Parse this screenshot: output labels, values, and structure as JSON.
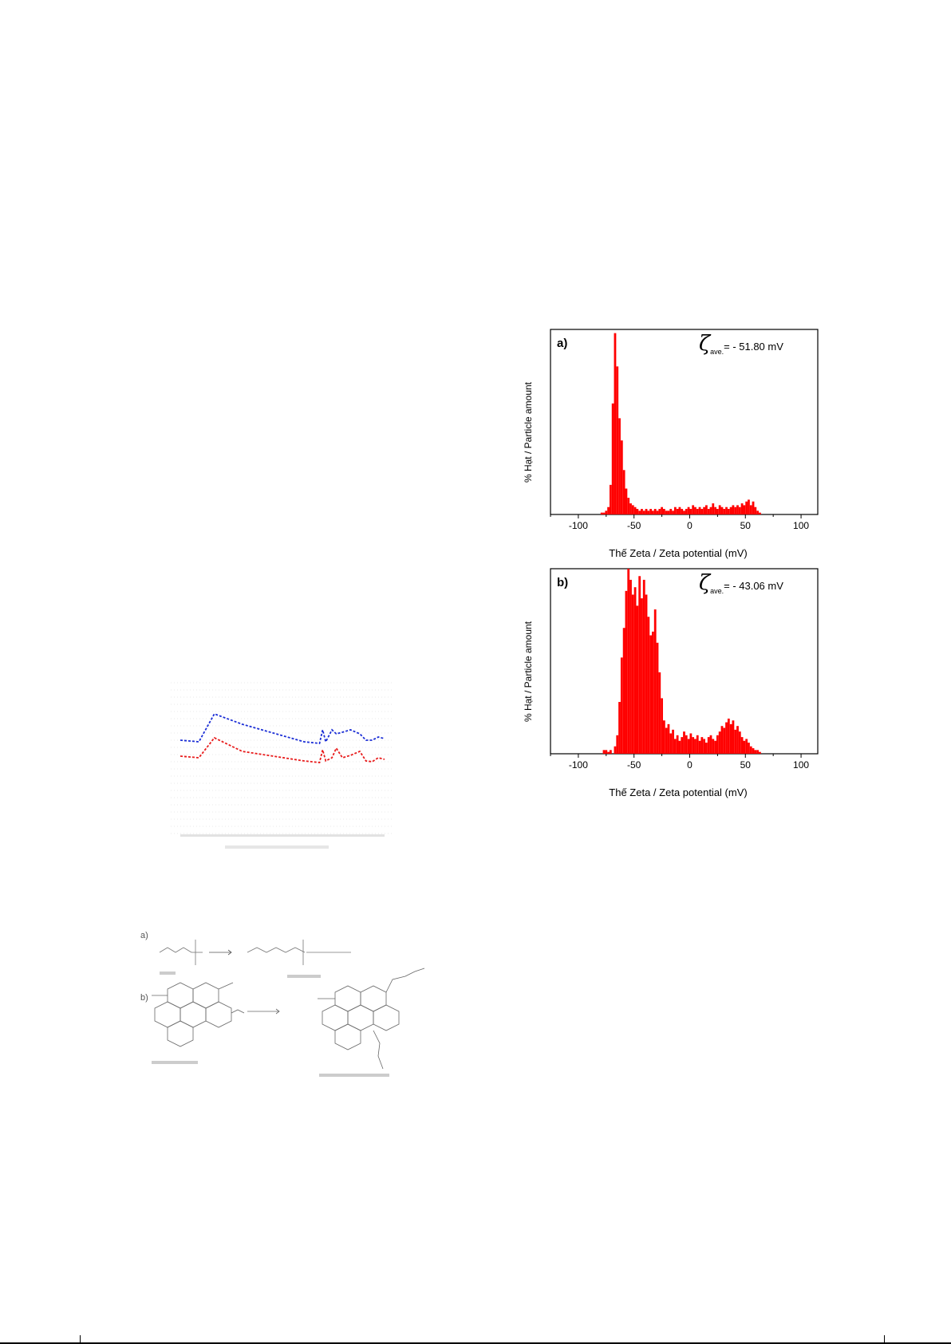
{
  "page": {
    "background": "#ffffff",
    "footer_rule": "#000000"
  },
  "ftir": {
    "colors": {
      "red": "#e81c1c",
      "blue": "#1c2fd6",
      "grid": "#d6d6d6"
    },
    "curves": {
      "red": [
        [
          4000,
          0.72
        ],
        [
          3700,
          0.7
        ],
        [
          3450,
          0.95
        ],
        [
          3000,
          0.78
        ],
        [
          2000,
          0.66
        ],
        [
          1750,
          0.64
        ],
        [
          1700,
          0.8
        ],
        [
          1650,
          0.66
        ],
        [
          1550,
          0.7
        ],
        [
          1480,
          0.82
        ],
        [
          1380,
          0.7
        ],
        [
          1250,
          0.73
        ],
        [
          1100,
          0.78
        ],
        [
          1000,
          0.66
        ],
        [
          900,
          0.65
        ],
        [
          800,
          0.7
        ],
        [
          700,
          0.68
        ]
      ],
      "blue": [
        [
          4000,
          0.92
        ],
        [
          3700,
          0.9
        ],
        [
          3450,
          1.25
        ],
        [
          3000,
          1.12
        ],
        [
          2000,
          0.9
        ],
        [
          1750,
          0.88
        ],
        [
          1700,
          1.05
        ],
        [
          1650,
          0.9
        ],
        [
          1550,
          1.05
        ],
        [
          1480,
          1.0
        ],
        [
          1380,
          1.02
        ],
        [
          1250,
          1.05
        ],
        [
          1100,
          1.0
        ],
        [
          1000,
          0.92
        ],
        [
          900,
          0.92
        ],
        [
          800,
          0.96
        ],
        [
          700,
          0.94
        ]
      ]
    }
  },
  "scheme": {
    "part_a_label": "a)",
    "part_b_label": "b)",
    "line_color": "#333333"
  },
  "chart_data": [
    {
      "type": "bar",
      "panel_label": "a)",
      "zeta_avg": "= - 51.80 mV",
      "xlabel": "Thế Zeta / Zeta potential (mV)",
      "ylabel": "% Hạt / Particle amount",
      "xlim": [
        -125,
        115
      ],
      "ylim": [
        0,
        100
      ],
      "xticks": [
        "-100",
        "-50",
        "0",
        "50",
        "100"
      ],
      "xtick_values": [
        -100,
        -50,
        0,
        50,
        100
      ],
      "bin_width": 2,
      "bar_color": "#ff0000",
      "bins": [
        {
          "x": -80,
          "y": 1
        },
        {
          "x": -78,
          "y": 1
        },
        {
          "x": -76,
          "y": 2
        },
        {
          "x": -74,
          "y": 4
        },
        {
          "x": -72,
          "y": 16
        },
        {
          "x": -70,
          "y": 60
        },
        {
          "x": -68,
          "y": 98
        },
        {
          "x": -66,
          "y": 80
        },
        {
          "x": -64,
          "y": 52
        },
        {
          "x": -62,
          "y": 40
        },
        {
          "x": -60,
          "y": 24
        },
        {
          "x": -58,
          "y": 14
        },
        {
          "x": -56,
          "y": 9
        },
        {
          "x": -54,
          "y": 6
        },
        {
          "x": -52,
          "y": 5
        },
        {
          "x": -50,
          "y": 4
        },
        {
          "x": -48,
          "y": 3
        },
        {
          "x": -46,
          "y": 2
        },
        {
          "x": -44,
          "y": 3
        },
        {
          "x": -42,
          "y": 2
        },
        {
          "x": -40,
          "y": 3
        },
        {
          "x": -38,
          "y": 2
        },
        {
          "x": -36,
          "y": 3
        },
        {
          "x": -34,
          "y": 2
        },
        {
          "x": -32,
          "y": 3
        },
        {
          "x": -30,
          "y": 2
        },
        {
          "x": -28,
          "y": 3
        },
        {
          "x": -26,
          "y": 4
        },
        {
          "x": -24,
          "y": 3
        },
        {
          "x": -22,
          "y": 2
        },
        {
          "x": -20,
          "y": 2
        },
        {
          "x": -18,
          "y": 3
        },
        {
          "x": -16,
          "y": 2
        },
        {
          "x": -14,
          "y": 4
        },
        {
          "x": -12,
          "y": 3
        },
        {
          "x": -10,
          "y": 4
        },
        {
          "x": -8,
          "y": 3
        },
        {
          "x": -6,
          "y": 2
        },
        {
          "x": -4,
          "y": 3
        },
        {
          "x": -2,
          "y": 4
        },
        {
          "x": 0,
          "y": 3
        },
        {
          "x": 2,
          "y": 5
        },
        {
          "x": 4,
          "y": 4
        },
        {
          "x": 6,
          "y": 3
        },
        {
          "x": 8,
          "y": 4
        },
        {
          "x": 10,
          "y": 3
        },
        {
          "x": 12,
          "y": 4
        },
        {
          "x": 14,
          "y": 5
        },
        {
          "x": 16,
          "y": 3
        },
        {
          "x": 18,
          "y": 4
        },
        {
          "x": 20,
          "y": 6
        },
        {
          "x": 22,
          "y": 4
        },
        {
          "x": 24,
          "y": 3
        },
        {
          "x": 26,
          "y": 5
        },
        {
          "x": 28,
          "y": 4
        },
        {
          "x": 30,
          "y": 3
        },
        {
          "x": 32,
          "y": 4
        },
        {
          "x": 34,
          "y": 3
        },
        {
          "x": 36,
          "y": 4
        },
        {
          "x": 38,
          "y": 5
        },
        {
          "x": 40,
          "y": 4
        },
        {
          "x": 42,
          "y": 5
        },
        {
          "x": 44,
          "y": 4
        },
        {
          "x": 46,
          "y": 6
        },
        {
          "x": 48,
          "y": 5
        },
        {
          "x": 50,
          "y": 7
        },
        {
          "x": 52,
          "y": 8
        },
        {
          "x": 54,
          "y": 5
        },
        {
          "x": 56,
          "y": 7
        },
        {
          "x": 58,
          "y": 4
        },
        {
          "x": 60,
          "y": 2
        },
        {
          "x": 62,
          "y": 1
        }
      ]
    },
    {
      "type": "bar",
      "panel_label": "b)",
      "zeta_avg": "= - 43.06 mV",
      "xlabel": "Thế Zeta / Zeta potential (mV)",
      "ylabel": "% Hạt / Particle amount",
      "xlim": [
        -125,
        115
      ],
      "ylim": [
        0,
        100
      ],
      "xticks": [
        "-100",
        "-50",
        "0",
        "50",
        "100"
      ],
      "xtick_values": [
        -100,
        -50,
        0,
        50,
        100
      ],
      "bin_width": 2,
      "bar_color": "#ff0000",
      "bins": [
        {
          "x": -78,
          "y": 2
        },
        {
          "x": -76,
          "y": 2
        },
        {
          "x": -74,
          "y": 1
        },
        {
          "x": -72,
          "y": 2
        },
        {
          "x": -68,
          "y": 4
        },
        {
          "x": -66,
          "y": 10
        },
        {
          "x": -64,
          "y": 28
        },
        {
          "x": -62,
          "y": 52
        },
        {
          "x": -60,
          "y": 68
        },
        {
          "x": -58,
          "y": 88
        },
        {
          "x": -56,
          "y": 100
        },
        {
          "x": -54,
          "y": 94
        },
        {
          "x": -52,
          "y": 86
        },
        {
          "x": -50,
          "y": 90
        },
        {
          "x": -48,
          "y": 80
        },
        {
          "x": -46,
          "y": 96
        },
        {
          "x": -44,
          "y": 84
        },
        {
          "x": -42,
          "y": 94
        },
        {
          "x": -40,
          "y": 86
        },
        {
          "x": -38,
          "y": 74
        },
        {
          "x": -36,
          "y": 64
        },
        {
          "x": -34,
          "y": 66
        },
        {
          "x": -32,
          "y": 78
        },
        {
          "x": -30,
          "y": 60
        },
        {
          "x": -28,
          "y": 44
        },
        {
          "x": -26,
          "y": 30
        },
        {
          "x": -24,
          "y": 18
        },
        {
          "x": -22,
          "y": 14
        },
        {
          "x": -20,
          "y": 16
        },
        {
          "x": -18,
          "y": 11
        },
        {
          "x": -16,
          "y": 13
        },
        {
          "x": -14,
          "y": 8
        },
        {
          "x": -12,
          "y": 10
        },
        {
          "x": -10,
          "y": 7
        },
        {
          "x": -8,
          "y": 9
        },
        {
          "x": -6,
          "y": 12
        },
        {
          "x": -4,
          "y": 10
        },
        {
          "x": -2,
          "y": 8
        },
        {
          "x": 0,
          "y": 11
        },
        {
          "x": 2,
          "y": 9
        },
        {
          "x": 4,
          "y": 8
        },
        {
          "x": 6,
          "y": 10
        },
        {
          "x": 8,
          "y": 7
        },
        {
          "x": 10,
          "y": 9
        },
        {
          "x": 12,
          "y": 8
        },
        {
          "x": 14,
          "y": 6
        },
        {
          "x": 16,
          "y": 9
        },
        {
          "x": 18,
          "y": 10
        },
        {
          "x": 20,
          "y": 8
        },
        {
          "x": 22,
          "y": 7
        },
        {
          "x": 24,
          "y": 10
        },
        {
          "x": 26,
          "y": 12
        },
        {
          "x": 28,
          "y": 15
        },
        {
          "x": 30,
          "y": 14
        },
        {
          "x": 32,
          "y": 17
        },
        {
          "x": 34,
          "y": 19
        },
        {
          "x": 36,
          "y": 16
        },
        {
          "x": 38,
          "y": 18
        },
        {
          "x": 40,
          "y": 13
        },
        {
          "x": 42,
          "y": 15
        },
        {
          "x": 44,
          "y": 12
        },
        {
          "x": 46,
          "y": 9
        },
        {
          "x": 48,
          "y": 7
        },
        {
          "x": 50,
          "y": 8
        },
        {
          "x": 52,
          "y": 6
        },
        {
          "x": 54,
          "y": 4
        },
        {
          "x": 56,
          "y": 3
        },
        {
          "x": 58,
          "y": 2
        },
        {
          "x": 60,
          "y": 2
        },
        {
          "x": 62,
          "y": 1
        }
      ]
    }
  ]
}
